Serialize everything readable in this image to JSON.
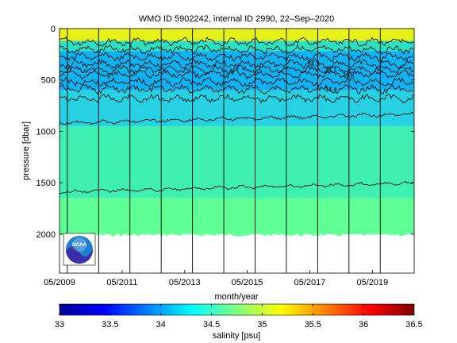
{
  "chart_data": {
    "type": "heatmap",
    "title": "WMO ID 5902242, internal ID 2990, 22–Sep–2020",
    "xlabel": "month/year",
    "ylabel": "pressure [dbar]",
    "x_ticks": [
      "05/2009",
      "05/2011",
      "05/2013",
      "05/2015",
      "05/2017",
      "05/2019"
    ],
    "x_range": [
      "2009-05",
      "2020-09"
    ],
    "y_ticks": [
      0,
      500,
      1000,
      1500,
      2000
    ],
    "ylim": [
      0,
      2380
    ],
    "y_reversed": true,
    "profile_max_pressure": 2000,
    "vertical_lines_dates": [
      "2009-08",
      "2010-08",
      "2011-08",
      "2012-08",
      "2013-08",
      "2014-08",
      "2015-08",
      "2016-08",
      "2017-08",
      "2018-08",
      "2019-08"
    ],
    "colorbar": {
      "label": "salinity [psu]",
      "min": 33,
      "max": 36.5,
      "ticks": [
        33,
        33.5,
        34,
        34.5,
        35,
        35.5,
        36,
        36.5
      ],
      "colormap": "jet"
    },
    "layers": [
      {
        "from_pressure": 0,
        "to_pressure": 120,
        "salinity": 35.0,
        "color": "#e6f01a"
      },
      {
        "from_pressure": 120,
        "to_pressure": 220,
        "salinity": 34.6,
        "color": "#2de0c4"
      },
      {
        "from_pressure": 220,
        "to_pressure": 600,
        "salinity": 34.3,
        "color": "#12b2f0"
      },
      {
        "from_pressure": 600,
        "to_pressure": 950,
        "salinity": 34.45,
        "color": "#27d1e2"
      },
      {
        "from_pressure": 950,
        "to_pressure": 1650,
        "salinity": 34.6,
        "color": "#3ff0b2"
      },
      {
        "from_pressure": 1650,
        "to_pressure": 2000,
        "salinity": 34.7,
        "color": "#60ff96"
      }
    ],
    "contours": [
      {
        "pressure": 130,
        "label": ""
      },
      {
        "pressure": 205,
        "label": ""
      },
      {
        "pressure": 275,
        "label": ""
      },
      {
        "pressure": 345,
        "label": "34.3"
      },
      {
        "pressure": 400,
        "label": "34.1"
      },
      {
        "pressure": 445,
        "label": "34.2"
      },
      {
        "pressure": 520,
        "label": ""
      },
      {
        "pressure": 590,
        "label": "34.4"
      },
      {
        "pressure": 680,
        "label": ""
      },
      {
        "pressure": 920,
        "label": ""
      },
      {
        "pressure": 1590,
        "label": ""
      }
    ]
  },
  "logo": {
    "name": "noaa-logo",
    "text": "NOAA"
  }
}
